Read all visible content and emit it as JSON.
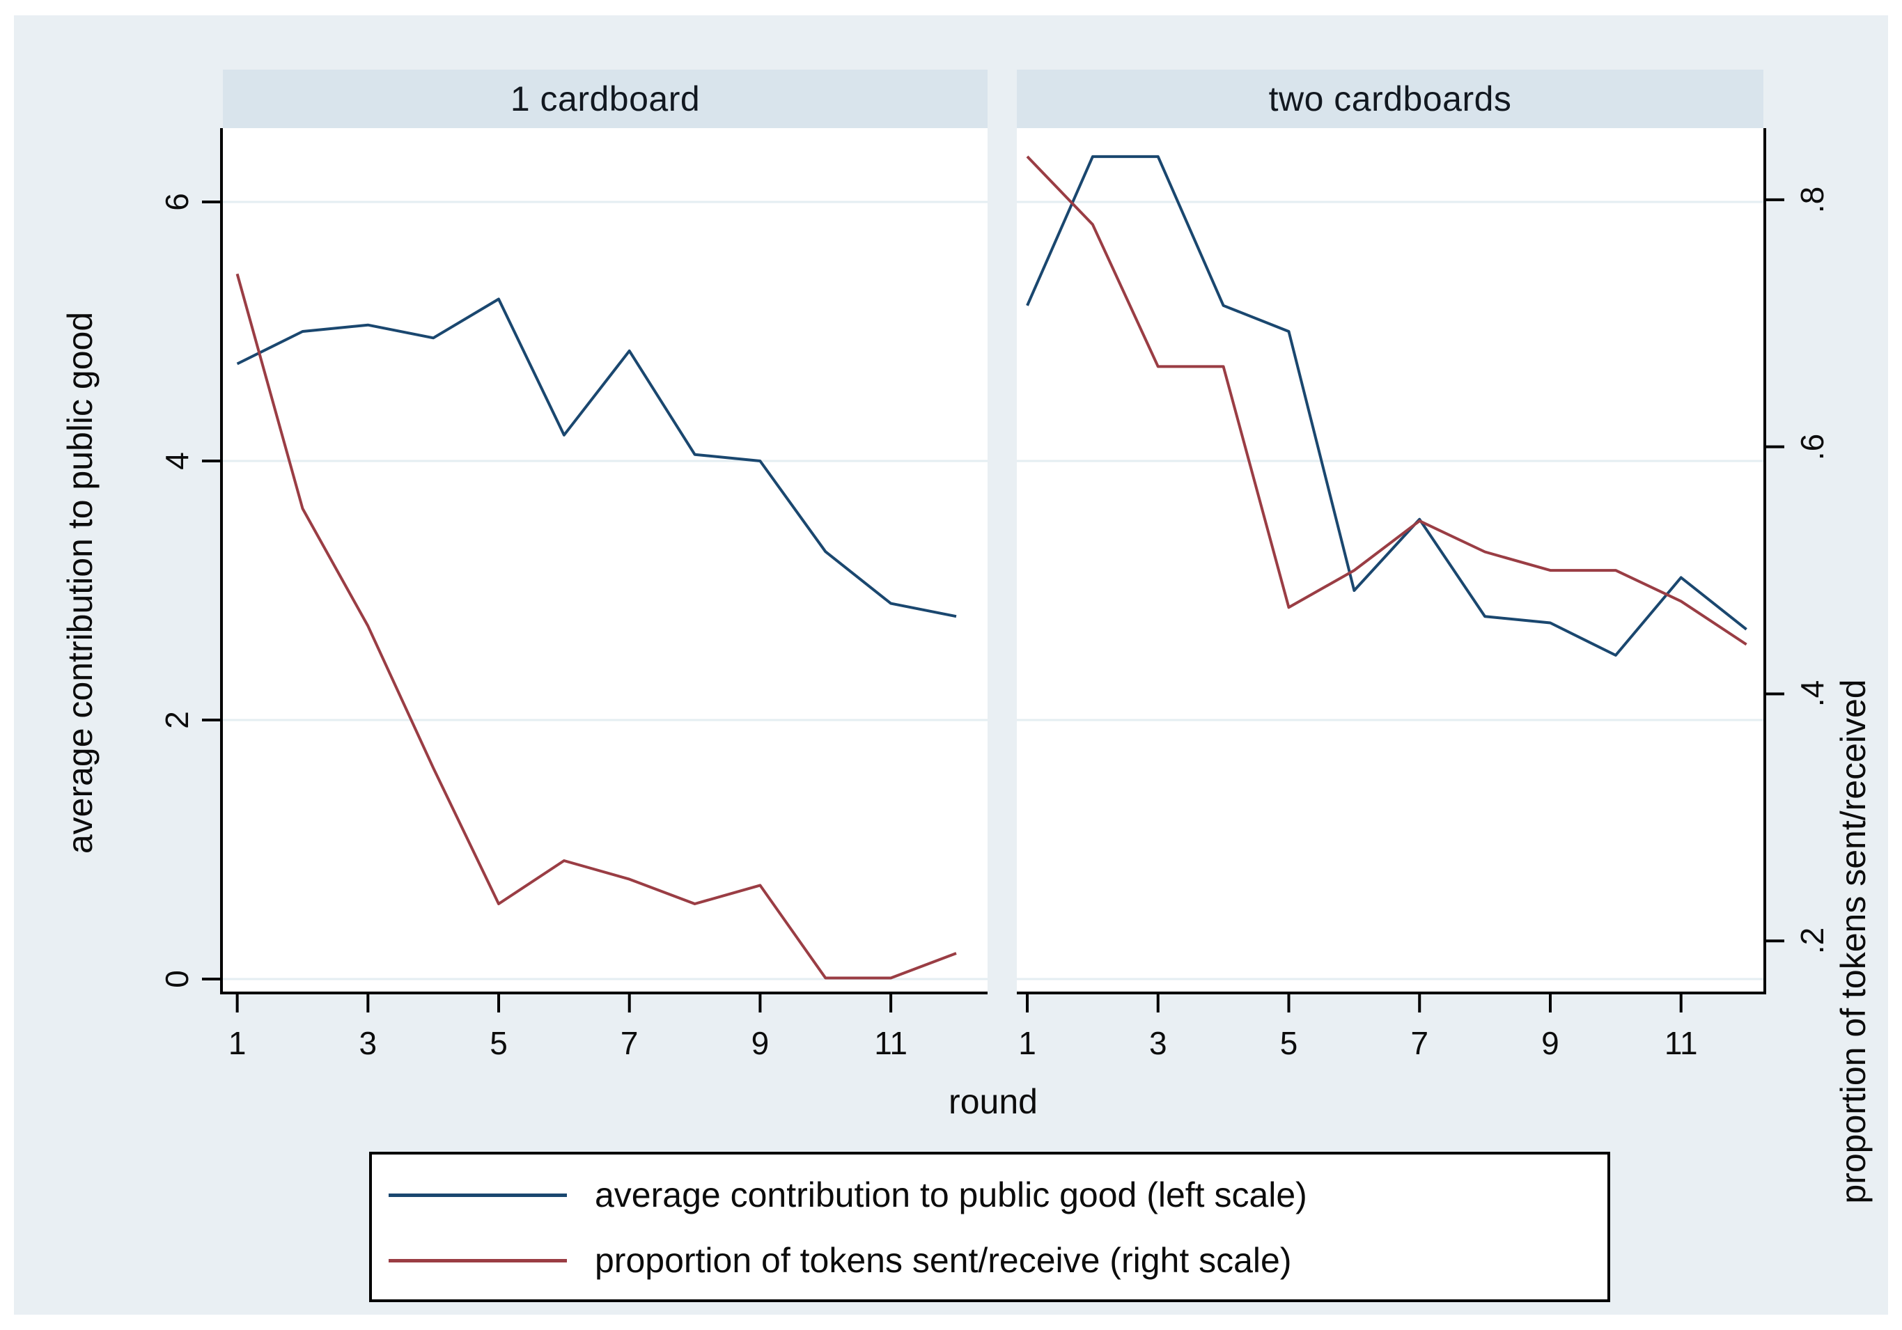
{
  "figure": {
    "background_color": "#e9eff3",
    "plot_background_color": "#ffffff",
    "panel_header_color": "#d9e4ec",
    "gridline_color": "#e4eef2",
    "axis_color": "#000000",
    "series_blue_color": "#1a476f",
    "series_red_color": "#9a3d44"
  },
  "panels": [
    {
      "title": "1 cardboard"
    },
    {
      "title": "two cardboards"
    }
  ],
  "axes": {
    "x": {
      "title": "round",
      "tick_labels": [
        "1",
        "3",
        "5",
        "7",
        "9",
        "11"
      ],
      "tick_values": [
        1,
        3,
        5,
        7,
        9,
        11
      ]
    },
    "y_left": {
      "title": "average contribution to public good",
      "tick_labels": [
        "0",
        "2",
        "4",
        "6"
      ],
      "tick_values": [
        0,
        2,
        4,
        6
      ]
    },
    "y_right": {
      "title": "proportion of tokens sent/received",
      "tick_labels": [
        ".2",
        ".4",
        ".6",
        ".8"
      ],
      "tick_values": [
        0.2,
        0.4,
        0.6,
        0.8
      ]
    }
  },
  "legend": {
    "items": [
      {
        "label": "average contribution to public good (left scale)",
        "color": "#1a476f"
      },
      {
        "label": "proportion of tokens sent/receive (right scale)",
        "color": "#9a3d44"
      }
    ]
  },
  "chart_data": [
    {
      "type": "line",
      "panel_title": "1 cardboard",
      "x": [
        1,
        2,
        3,
        4,
        5,
        6,
        7,
        8,
        9,
        10,
        11,
        12
      ],
      "x_range": [
        0.78,
        12.48
      ],
      "left_y_range": [
        -0.097,
        6.57
      ],
      "right_y_range": [
        0.159,
        0.858
      ],
      "grid": true,
      "series": [
        {
          "name": "average contribution to public good (left scale)",
          "axis": "left",
          "color": "#1a476f",
          "values": [
            4.75,
            5.0,
            5.05,
            4.95,
            5.25,
            4.2,
            4.85,
            4.05,
            4.0,
            3.3,
            2.9,
            2.8
          ]
        },
        {
          "name": "proportion of tokens sent/receive (right scale)",
          "axis": "right",
          "color": "#9a3d44",
          "values": [
            0.74,
            0.55,
            0.455,
            0.34,
            0.23,
            0.265,
            0.25,
            0.23,
            0.245,
            0.17,
            0.17,
            0.19
          ]
        }
      ]
    },
    {
      "type": "line",
      "panel_title": "two cardboards",
      "x": [
        1,
        2,
        3,
        4,
        5,
        6,
        7,
        8,
        9,
        10,
        11,
        12
      ],
      "x_range": [
        0.84,
        12.26
      ],
      "left_y_range": [
        -0.097,
        6.57
      ],
      "right_y_range": [
        0.159,
        0.858
      ],
      "grid": true,
      "series": [
        {
          "name": "average contribution to public good (left scale)",
          "axis": "left",
          "color": "#1a476f",
          "values": [
            5.2,
            6.35,
            6.35,
            5.2,
            5.0,
            3.0,
            3.55,
            2.8,
            2.75,
            2.5,
            3.1,
            2.7
          ]
        },
        {
          "name": "proportion of tokens sent/receive (right scale)",
          "axis": "right",
          "color": "#9a3d44",
          "values": [
            0.835,
            0.78,
            0.665,
            0.665,
            0.47,
            0.5,
            0.54,
            0.515,
            0.5,
            0.5,
            0.475,
            0.44
          ]
        }
      ]
    }
  ]
}
